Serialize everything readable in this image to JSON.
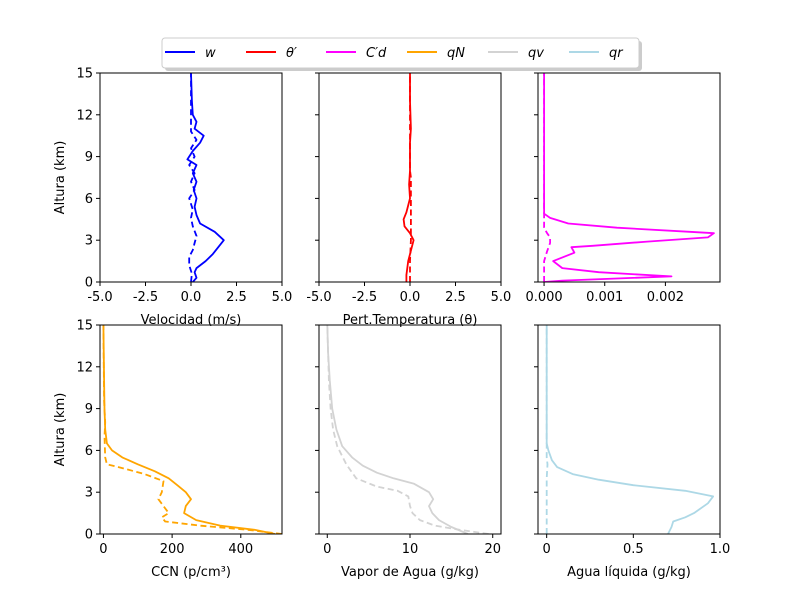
{
  "legend": [
    {
      "label": "w",
      "color": "#0000ff"
    },
    {
      "label": "θ′",
      "color": "#ff0000"
    },
    {
      "label": "C′d",
      "color": "#ff00ff"
    },
    {
      "label": "qN",
      "color": "#ffa500"
    },
    {
      "label": "qv",
      "color": "#d3d3d3"
    },
    {
      "label": "qr",
      "color": "#add8e6"
    }
  ],
  "chart_data": [
    {
      "type": "line",
      "id": "w",
      "color": "#0000ff",
      "xlabel": "Velocidad (m/s)",
      "ylabel": "Altura (km)",
      "xlim": [
        -5,
        5
      ],
      "ylim": [
        0,
        15
      ],
      "xticks": [
        "-5.0",
        "-2.5",
        "0.0",
        "2.5",
        "5.0"
      ],
      "xtickvals": [
        -5,
        -2.5,
        0,
        2.5,
        5
      ],
      "yticks": [
        "0",
        "3",
        "6",
        "9",
        "12",
        "15"
      ],
      "ytickvals": [
        0,
        3,
        6,
        9,
        12,
        15
      ],
      "series": [
        {
          "style": "solid",
          "points": [
            [
              0.1,
              0
            ],
            [
              0.3,
              0.3
            ],
            [
              0.2,
              0.7
            ],
            [
              0.3,
              1.0
            ],
            [
              0.8,
              1.5
            ],
            [
              1.2,
              2.0
            ],
            [
              1.8,
              3.0
            ],
            [
              1.3,
              3.6
            ],
            [
              0.5,
              4.2
            ],
            [
              0.3,
              4.8
            ],
            [
              0.2,
              5.4
            ],
            [
              0.3,
              6.0
            ],
            [
              0.15,
              6.6
            ],
            [
              0.3,
              7.2
            ],
            [
              0.1,
              7.8
            ],
            [
              0.3,
              8.4
            ],
            [
              -0.2,
              8.8
            ],
            [
              0.1,
              9.4
            ],
            [
              0.5,
              10.0
            ],
            [
              0.7,
              10.5
            ],
            [
              0.2,
              11.0
            ],
            [
              0.3,
              11.5
            ],
            [
              0.1,
              12.0
            ],
            [
              0.05,
              13.0
            ],
            [
              0,
              15
            ]
          ]
        },
        {
          "style": "dashed",
          "points": [
            [
              0,
              0
            ],
            [
              0.05,
              0.6
            ],
            [
              -0.1,
              1.2
            ],
            [
              -0.1,
              1.8
            ],
            [
              0.1,
              2.3
            ],
            [
              0.2,
              2.8
            ],
            [
              0.3,
              3.3
            ],
            [
              0.1,
              4.0
            ],
            [
              0,
              4.6
            ],
            [
              0.1,
              5.2
            ],
            [
              -0.1,
              6.0
            ],
            [
              0.2,
              6.6
            ],
            [
              0,
              7.2
            ],
            [
              0.2,
              7.8
            ],
            [
              -0.1,
              8.4
            ],
            [
              0.2,
              9.0
            ],
            [
              0,
              9.6
            ],
            [
              0.3,
              10.2
            ],
            [
              0,
              10.8
            ],
            [
              0,
              15
            ]
          ]
        }
      ]
    },
    {
      "type": "line",
      "id": "theta",
      "color": "#ff0000",
      "xlabel": "Pert.Temperatura (θ)",
      "ylabel": "",
      "xlim": [
        -5,
        5
      ],
      "ylim": [
        0,
        15
      ],
      "xticks": [
        "-5.0",
        "-2.5",
        "0.0",
        "2.5",
        "5.0"
      ],
      "xtickvals": [
        -5,
        -2.5,
        0,
        2.5,
        5
      ],
      "yticks": [
        "",
        "",
        "",
        "",
        "",
        ""
      ],
      "ytickvals": [
        0,
        3,
        6,
        9,
        12,
        15
      ],
      "series": [
        {
          "style": "solid",
          "points": [
            [
              -0.2,
              0
            ],
            [
              -0.2,
              0.5
            ],
            [
              -0.1,
              1.5
            ],
            [
              0.1,
              2.5
            ],
            [
              0.2,
              3.0
            ],
            [
              0,
              3.5
            ],
            [
              -0.3,
              4.0
            ],
            [
              -0.35,
              4.5
            ],
            [
              -0.2,
              5.0
            ],
            [
              -0.1,
              5.5
            ],
            [
              0,
              6.0
            ],
            [
              -0.05,
              7.0
            ],
            [
              0,
              8.0
            ],
            [
              0,
              10.0
            ],
            [
              0.05,
              11.0
            ],
            [
              0,
              13.0
            ],
            [
              0,
              15
            ]
          ]
        },
        {
          "style": "dashed",
          "points": [
            [
              0,
              0
            ],
            [
              0,
              1.5
            ],
            [
              0.05,
              3.0
            ],
            [
              0.05,
              5.0
            ],
            [
              0.05,
              7.5
            ],
            [
              0,
              8.0
            ],
            [
              0,
              15
            ]
          ]
        }
      ]
    },
    {
      "type": "line",
      "id": "cd",
      "color": "#ff00ff",
      "xlabel": "",
      "ylabel": "",
      "xlim": [
        -0.0001,
        0.0029
      ],
      "ylim": [
        0,
        15
      ],
      "xticks": [
        "0.000",
        "0.001",
        "0.002"
      ],
      "xtickvals": [
        0,
        0.001,
        0.002
      ],
      "yticks": [
        "",
        "",
        "",
        "",
        "",
        ""
      ],
      "ytickvals": [
        0,
        3,
        6,
        9,
        12,
        15
      ],
      "series": [
        {
          "style": "solid",
          "points": [
            [
              0,
              0
            ],
            [
              0.0003,
              0.1
            ],
            [
              0.0021,
              0.4
            ],
            [
              0.0009,
              0.7
            ],
            [
              0.0003,
              1.0
            ],
            [
              0.00015,
              1.5
            ],
            [
              0.0005,
              2.1
            ],
            [
              0.00045,
              2.5
            ],
            [
              0.0008,
              2.6
            ],
            [
              0.0017,
              2.9
            ],
            [
              0.0027,
              3.2
            ],
            [
              0.0028,
              3.5
            ],
            [
              0.0024,
              3.6
            ],
            [
              0.0012,
              3.9
            ],
            [
              0.0004,
              4.2
            ],
            [
              0.0001,
              4.6
            ],
            [
              0,
              4.9
            ],
            [
              0,
              15
            ]
          ]
        },
        {
          "style": "dashed",
          "points": [
            [
              0,
              0
            ],
            [
              0,
              1.0
            ],
            [
              0,
              1.5
            ],
            [
              5e-05,
              2.2
            ],
            [
              0.0001,
              2.8
            ],
            [
              0.0001,
              3.2
            ],
            [
              5e-05,
              3.5
            ],
            [
              0,
              3.9
            ],
            [
              0,
              15
            ]
          ]
        }
      ]
    },
    {
      "type": "line",
      "id": "qn",
      "color": "#ffa500",
      "xlabel": "CCN (p/cm³)",
      "ylabel": "Altura (km)",
      "xlim": [
        -10,
        520
      ],
      "ylim": [
        0,
        15
      ],
      "xticks": [
        "0",
        "200",
        "400"
      ],
      "xtickvals": [
        0,
        200,
        400
      ],
      "yticks": [
        "0",
        "3",
        "6",
        "9",
        "12",
        "15"
      ],
      "ytickvals": [
        0,
        3,
        6,
        9,
        12,
        15
      ],
      "series": [
        {
          "style": "solid",
          "points": [
            [
              500,
              0
            ],
            [
              440,
              0.3
            ],
            [
              340,
              0.6
            ],
            [
              270,
              1.0
            ],
            [
              235,
              1.5
            ],
            [
              240,
              2.0
            ],
            [
              255,
              2.5
            ],
            [
              240,
              3.0
            ],
            [
              215,
              3.5
            ],
            [
              190,
              4.0
            ],
            [
              150,
              4.5
            ],
            [
              100,
              5.0
            ],
            [
              55,
              5.5
            ],
            [
              25,
              6.0
            ],
            [
              10,
              6.5
            ],
            [
              5,
              7.5
            ],
            [
              3,
              9.0
            ],
            [
              2,
              11.0
            ],
            [
              0,
              15
            ]
          ]
        },
        {
          "style": "dashed",
          "points": [
            [
              520,
              0
            ],
            [
              420,
              0.3
            ],
            [
              280,
              0.6
            ],
            [
              180,
              0.9
            ],
            [
              170,
              1.2
            ],
            [
              190,
              1.5
            ],
            [
              175,
              2.0
            ],
            [
              160,
              2.5
            ],
            [
              170,
              3.0
            ],
            [
              175,
              3.8
            ],
            [
              120,
              4.3
            ],
            [
              60,
              4.7
            ],
            [
              10,
              5.0
            ],
            [
              5,
              5.5
            ],
            [
              3,
              7.0
            ],
            [
              5,
              8.0
            ],
            [
              2,
              9.5
            ],
            [
              0,
              15
            ]
          ]
        }
      ]
    },
    {
      "type": "line",
      "id": "qv",
      "color": "#d3d3d3",
      "xlabel": "Vapor de Agua (g/kg)",
      "ylabel": "",
      "xlim": [
        -1,
        21
      ],
      "ylim": [
        0,
        15
      ],
      "xticks": [
        "0",
        "10",
        "20"
      ],
      "xtickvals": [
        0,
        10,
        20
      ],
      "yticks": [
        "",
        "",
        "",
        "",
        "",
        ""
      ],
      "ytickvals": [
        0,
        3,
        6,
        9,
        12,
        15
      ],
      "series": [
        {
          "style": "solid",
          "points": [
            [
              17,
              0
            ],
            [
              15,
              0.5
            ],
            [
              13.5,
              1.0
            ],
            [
              12.7,
              1.5
            ],
            [
              12.3,
              2.0
            ],
            [
              12.8,
              2.5
            ],
            [
              12.3,
              3.0
            ],
            [
              10.5,
              3.6
            ],
            [
              8.0,
              4.0
            ],
            [
              6.0,
              4.4
            ],
            [
              4.3,
              4.9
            ],
            [
              3,
              5.5
            ],
            [
              1.8,
              6.3
            ],
            [
              1.1,
              7.5
            ],
            [
              0.6,
              9.0
            ],
            [
              0.3,
              11.0
            ],
            [
              0.1,
              13.0
            ],
            [
              0,
              15
            ]
          ]
        },
        {
          "style": "dashed",
          "points": [
            [
              19.5,
              0
            ],
            [
              16,
              0.3
            ],
            [
              13,
              0.6
            ],
            [
              11.2,
              1.0
            ],
            [
              10.3,
              1.5
            ],
            [
              10,
              2.0
            ],
            [
              9.8,
              2.7
            ],
            [
              8.5,
              3.1
            ],
            [
              6.0,
              3.4
            ],
            [
              3.5,
              4.0
            ],
            [
              2.3,
              5.0
            ],
            [
              1.2,
              6.3
            ],
            [
              0.7,
              7.5
            ],
            [
              0.4,
              9.0
            ],
            [
              0.2,
              11.0
            ],
            [
              0,
              15
            ]
          ]
        }
      ]
    },
    {
      "type": "line",
      "id": "qr",
      "color": "#add8e6",
      "xlabel": "Agua líquida (g/kg)",
      "ylabel": "",
      "xlim": [
        -0.05,
        1.0
      ],
      "ylim": [
        0,
        15
      ],
      "xticks": [
        "0",
        "0.5",
        "1.0"
      ],
      "xtickvals": [
        0,
        0.5,
        1.0
      ],
      "yticks": [
        "",
        "",
        "",
        "",
        "",
        ""
      ],
      "ytickvals": [
        0,
        3,
        6,
        9,
        12,
        15
      ],
      "series": [
        {
          "style": "solid",
          "points": [
            [
              0.7,
              0
            ],
            [
              0.72,
              0.5
            ],
            [
              0.73,
              0.9
            ],
            [
              0.8,
              1.2
            ],
            [
              0.85,
              1.5
            ],
            [
              0.93,
              2.2
            ],
            [
              0.96,
              2.7
            ],
            [
              0.8,
              3.1
            ],
            [
              0.5,
              3.5
            ],
            [
              0.3,
              3.9
            ],
            [
              0.15,
              4.3
            ],
            [
              0.06,
              4.8
            ],
            [
              0.03,
              5.3
            ],
            [
              0.01,
              6.0
            ],
            [
              0,
              6.5
            ],
            [
              0,
              15
            ]
          ]
        },
        {
          "style": "dashed",
          "points": [
            [
              0,
              0
            ],
            [
              0,
              4.0
            ],
            [
              0.005,
              5.0
            ],
            [
              0,
              5.5
            ],
            [
              0,
              15
            ]
          ]
        }
      ]
    }
  ]
}
